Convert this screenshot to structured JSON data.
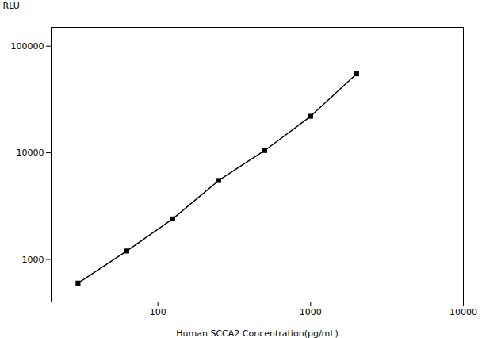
{
  "chart_data": {
    "type": "line",
    "x": [
      30,
      62.5,
      125,
      250,
      500,
      1000,
      2000
    ],
    "values": [
      600,
      1200,
      2400,
      5500,
      10500,
      22000,
      55000
    ],
    "xlabel": "Human SCCA2 Concentration(pg/mL)",
    "ylabel": "RLU",
    "xlim": [
      20,
      10000
    ],
    "ylim": [
      400,
      150000
    ],
    "xticks": [
      100,
      1000,
      10000
    ],
    "yticks": [
      1000,
      10000,
      100000
    ],
    "log": true,
    "grid": false,
    "marker": "square",
    "line_style": "solid"
  }
}
